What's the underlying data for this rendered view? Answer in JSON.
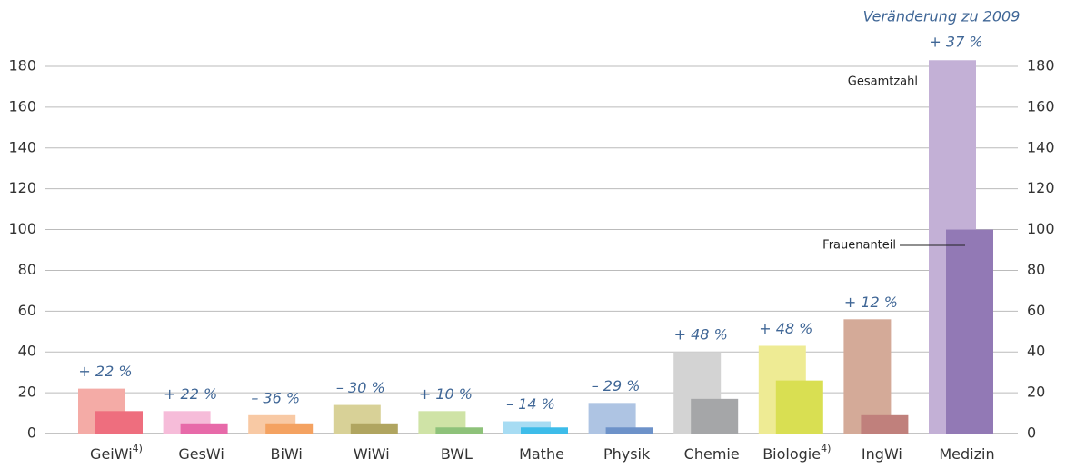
{
  "chart_data": {
    "type": "bar",
    "annotation_title": "Veränderung zu 2009",
    "categories": [
      "GeiWi",
      "GesWi",
      "BiWi",
      "WiWi",
      "BWL",
      "Mathe",
      "Physik",
      "Chemie",
      "Biologie",
      "IngWi",
      "Medizin"
    ],
    "category_superscripts": [
      "4)",
      null,
      null,
      null,
      null,
      null,
      null,
      null,
      "4)",
      null,
      null
    ],
    "series": [
      {
        "name": "Gesamtzahl",
        "colors": [
          "#f4aba6",
          "#f6bcd9",
          "#f8c9a4",
          "#d8d197",
          "#cfe3a6",
          "#a7dcf3",
          "#aec4e3",
          "#d3d3d3",
          "#eeeb94",
          "#d4aa98",
          "#c3b0d6"
        ],
        "values": [
          22,
          11,
          9,
          14,
          11,
          6,
          15,
          40,
          43,
          56,
          183
        ]
      },
      {
        "name": "Frauenanteil",
        "colors": [
          "#ee6e7e",
          "#e76aa9",
          "#f4a261",
          "#b0a560",
          "#8ec27a",
          "#3dbce9",
          "#6d92c9",
          "#a5a6a8",
          "#d9df52",
          "#c0807c",
          "#9279b5"
        ],
        "values": [
          11,
          5,
          5,
          5,
          3,
          3,
          3,
          17,
          26,
          9,
          100
        ]
      }
    ],
    "change_labels": [
      "+ 22 %",
      "+ 22 %",
      "– 36 %",
      "– 30 %",
      "+ 10 %",
      "– 14 %",
      "– 29 %",
      "+ 48 %",
      "+ 48 %",
      "+ 12 %",
      "+ 37 %"
    ],
    "ylim": [
      0,
      180
    ],
    "yticks": [
      0,
      20,
      40,
      60,
      80,
      100,
      120,
      140,
      160,
      180
    ],
    "grid": true
  }
}
